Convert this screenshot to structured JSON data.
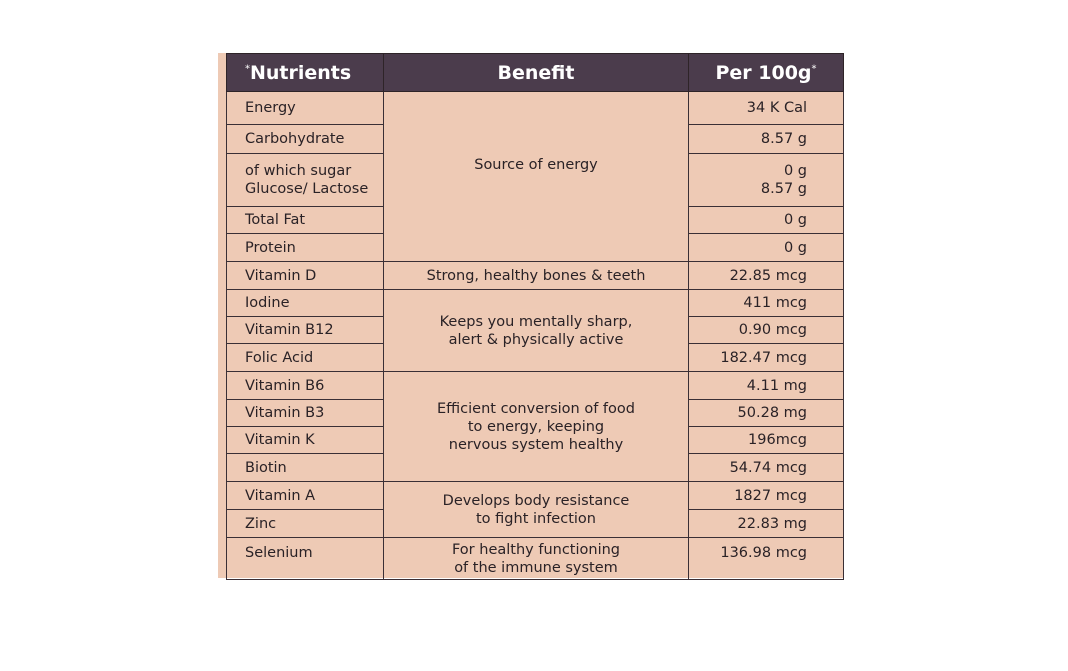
{
  "header": {
    "nutrients": "Nutrients",
    "nutrients_mark": "*",
    "benefit": "Benefit",
    "per": "Per 100g",
    "per_mark": "*"
  },
  "groups": [
    {
      "benefit": "Source of energy",
      "rows": [
        {
          "name": "Energy",
          "value": "34 K Cal"
        },
        {
          "name": "Carbohydrate",
          "value": "8.57 g"
        },
        {
          "name": "of which sugar\nGlucose/ Lactose",
          "value": "0 g\n8.57 g"
        },
        {
          "name": "Total Fat",
          "value": "0 g"
        },
        {
          "name": "Protein",
          "value": "0 g"
        }
      ]
    },
    {
      "benefit": "Strong, healthy bones & teeth",
      "rows": [
        {
          "name": "Vitamin D",
          "value": "22.85 mcg"
        }
      ]
    },
    {
      "benefit": "Keeps you mentally sharp,\nalert & physically active",
      "rows": [
        {
          "name": "Iodine",
          "value": "411 mcg"
        },
        {
          "name": "Vitamin B12",
          "value": "0.90 mcg"
        },
        {
          "name": "Folic Acid",
          "value": "182.47 mcg"
        }
      ]
    },
    {
      "benefit": "Efficient conversion of food\nto energy, keeping\nnervous system healthy",
      "rows": [
        {
          "name": "Vitamin B6",
          "value": "4.11 mg"
        },
        {
          "name": "Vitamin B3",
          "value": "50.28 mg"
        },
        {
          "name": "Vitamin K",
          "value": "196mcg"
        },
        {
          "name": "Biotin",
          "value": "54.74 mcg"
        }
      ]
    },
    {
      "benefit": "Develops body resistance\nto fight infection",
      "rows": [
        {
          "name": "Vitamin A",
          "value": "1827 mcg"
        },
        {
          "name": "Zinc",
          "value": "22.83 mg"
        }
      ]
    },
    {
      "benefit": "For healthy functioning\nof the immune system",
      "rows": [
        {
          "name": "Selenium",
          "value": "136.98 mcg"
        }
      ]
    }
  ]
}
